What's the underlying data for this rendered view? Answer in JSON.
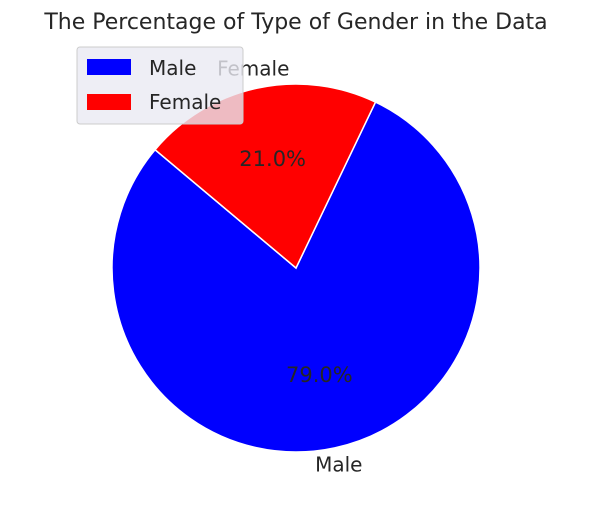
{
  "chart_data": {
    "type": "pie",
    "title": "The Percentage of Type of Gender in the Data",
    "categories": [
      "Male",
      "Female"
    ],
    "values": [
      79.0,
      21.0
    ],
    "percent_labels": [
      "79.0%",
      "21.0%"
    ],
    "colors": [
      "#0000ff",
      "#ff0000"
    ],
    "legend": {
      "position": "upper-left",
      "entries": [
        "Male",
        "Female"
      ]
    }
  }
}
